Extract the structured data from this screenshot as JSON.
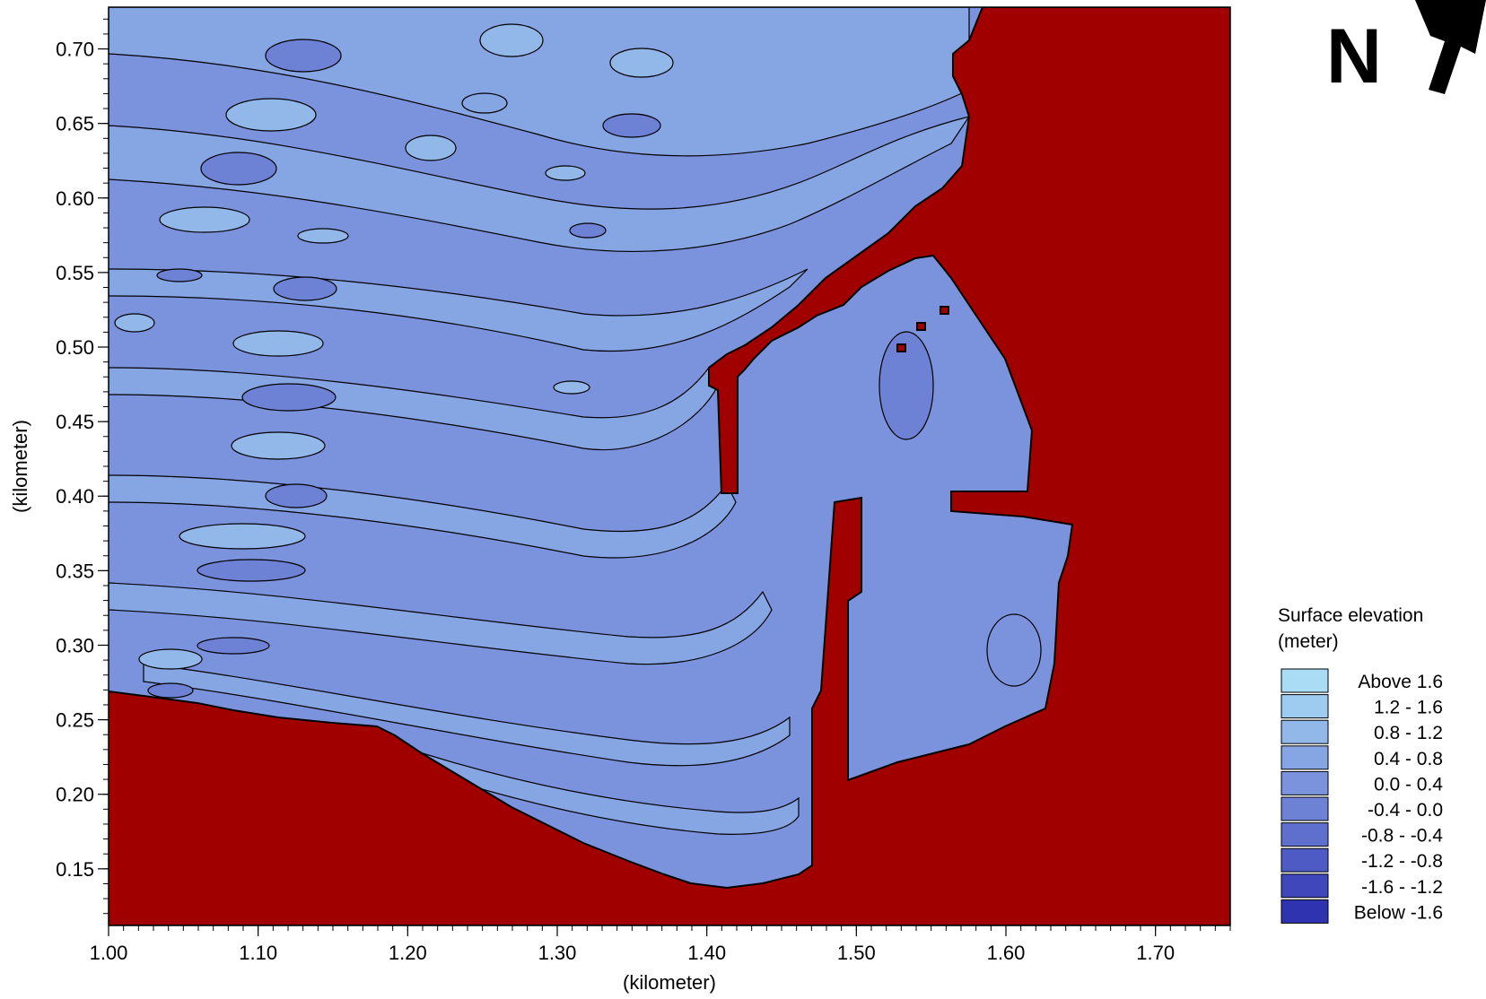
{
  "map": {
    "north_label": "N",
    "x_axis": {
      "title": "(kilometer)",
      "min": 1.0,
      "max": 1.75,
      "ticks": [
        {
          "value": 1.0,
          "label": "1.00"
        },
        {
          "value": 1.1,
          "label": "1.10"
        },
        {
          "value": 1.2,
          "label": "1.20"
        },
        {
          "value": 1.3,
          "label": "1.30"
        },
        {
          "value": 1.4,
          "label": "1.40"
        },
        {
          "value": 1.5,
          "label": "1.50"
        },
        {
          "value": 1.6,
          "label": "1.60"
        },
        {
          "value": 1.7,
          "label": "1.70"
        }
      ]
    },
    "y_axis": {
      "title": "(kilometer)",
      "min": 0.112,
      "max": 0.728,
      "ticks": [
        {
          "value": 0.15,
          "label": "0.15"
        },
        {
          "value": 0.2,
          "label": "0.20"
        },
        {
          "value": 0.25,
          "label": "0.25"
        },
        {
          "value": 0.3,
          "label": "0.30"
        },
        {
          "value": 0.35,
          "label": "0.35"
        },
        {
          "value": 0.4,
          "label": "0.40"
        },
        {
          "value": 0.45,
          "label": "0.45"
        },
        {
          "value": 0.5,
          "label": "0.50"
        },
        {
          "value": 0.55,
          "label": "0.55"
        },
        {
          "value": 0.6,
          "label": "0.60"
        },
        {
          "value": 0.65,
          "label": "0.65"
        },
        {
          "value": 0.7,
          "label": "0.70"
        }
      ]
    },
    "land_color": "#a00000",
    "contour_line_color": "#000000",
    "legend": {
      "title_line1": "Surface elevation",
      "title_line2": "(meter)",
      "items": [
        {
          "label": "Above  1.6",
          "color": "#aadcf5"
        },
        {
          "label": "1.2 -  1.6",
          "color": "#9ecbf0"
        },
        {
          "label": "0.8 -  1.2",
          "color": "#92b8ea"
        },
        {
          "label": "0.4 -  0.8",
          "color": "#86a5e3"
        },
        {
          "label": "0.0 -  0.4",
          "color": "#7a93dc"
        },
        {
          "label": "-0.4 -  0.0",
          "color": "#6e82d5"
        },
        {
          "label": "-0.8 - -0.4",
          "color": "#5f6fcd"
        },
        {
          "label": "-1.2 - -0.8",
          "color": "#4f5bc4"
        },
        {
          "label": "-1.6 - -1.2",
          "color": "#3f47bb"
        },
        {
          "label": "Below -1.6",
          "color": "#2f33b0"
        }
      ]
    }
  }
}
